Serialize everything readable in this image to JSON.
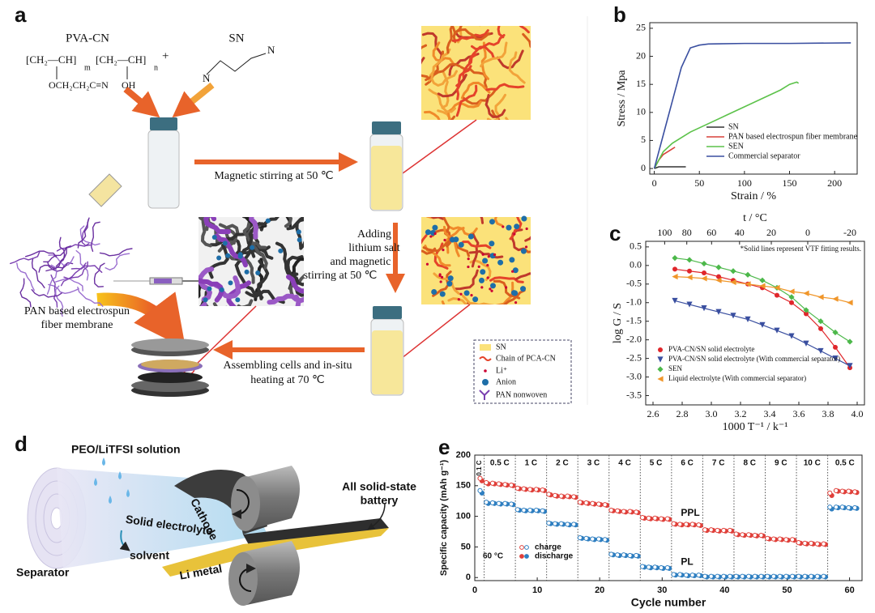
{
  "panels": {
    "a": {
      "label": "a",
      "pva_cn": "PVA-CN",
      "formula": [
        "[CH₂—CH]",
        "m",
        "[CH₂—CH]",
        "n",
        "+",
        "OCH₂CH₂C≡N",
        "OH"
      ],
      "sn": "SN",
      "sn_atoms": [
        "N",
        "N"
      ],
      "step1": "Magnetic stirring at 50 ℃",
      "step2": [
        "Adding",
        "lithium salt",
        "and magnetic",
        "stirring at 50 ℃"
      ],
      "membrane": [
        "PAN based electrospun",
        "fiber membrane"
      ],
      "step3": [
        "Assembling cells and in-situ",
        "heating at 70 ℃"
      ],
      "legend": [
        "SN",
        "Chain of PCA-CN",
        "Li⁺",
        "Anion",
        "PAN nonwoven"
      ]
    },
    "d": {
      "label": "d",
      "solution": "PEO/LiTFSI solution",
      "cathode": "Cathode",
      "electrolyte": "Solid electrolyte",
      "battery": [
        "All solid-state",
        "battery"
      ],
      "solvent": "solvent",
      "separator": "Separator",
      "li_metal": "Li metal"
    }
  },
  "chart_data": [
    {
      "type": "line",
      "label": "b",
      "xlabel": "Strain / %",
      "ylabel": "Stress / Mpa",
      "xlim": [
        -5,
        225
      ],
      "xticks": [
        0,
        50,
        100,
        150,
        200
      ],
      "ylim": [
        -1,
        26
      ],
      "yticks": [
        0,
        5,
        10,
        15,
        20,
        25
      ],
      "legend": "lower left",
      "series": [
        {
          "name": "SN",
          "color": "#333333",
          "x": [
            0,
            5,
            35
          ],
          "values": [
            0,
            0.3,
            0.3
          ]
        },
        {
          "name": "PAN based electrospun fiber membrane",
          "color": "#d9413a",
          "x": [
            0,
            5,
            10,
            15,
            20,
            23
          ],
          "values": [
            0,
            1.5,
            2.5,
            3,
            3.5,
            3.8
          ]
        },
        {
          "name": "SEN",
          "color": "#5cc24a",
          "x": [
            0,
            10,
            20,
            40,
            60,
            80,
            100,
            120,
            140,
            150,
            158,
            160
          ],
          "values": [
            0,
            3,
            4.5,
            6.5,
            8,
            9.5,
            11,
            12.5,
            14,
            15,
            15.4,
            15.2
          ]
        },
        {
          "name": "Commercial separator",
          "color": "#3a4fa0",
          "x": [
            0,
            10,
            20,
            30,
            40,
            50,
            60,
            100,
            150,
            218
          ],
          "values": [
            0,
            6,
            12,
            18,
            21.5,
            22,
            22.2,
            22.3,
            22.3,
            22.4
          ]
        }
      ]
    },
    {
      "type": "scatter",
      "label": "c",
      "xlabel": "1000 T⁻¹ / k⁻¹",
      "ylabel": "log G / S",
      "x2label": "t / °C",
      "note": "*Solid lines represent VTF fitting results.",
      "fit": true,
      "legend": "lower left",
      "xlim": [
        2.55,
        4.05
      ],
      "xticks": [
        2.6,
        2.8,
        {
          "value": 3,
          "label": "3.0"
        },
        3.2,
        3.4,
        3.6,
        3.8,
        {
          "value": 4,
          "label": "4.0"
        }
      ],
      "x2ticks": [
        100,
        80,
        60,
        40,
        20,
        0,
        -20
      ],
      "ylim": [
        -3.75,
        0.65
      ],
      "yticks": [
        0.5,
        {
          "value": 0,
          "label": "0.0"
        },
        -0.5,
        {
          "value": -1,
          "label": "-1.0"
        },
        -1.5,
        {
          "value": -2,
          "label": "-2.0"
        },
        -2.5,
        {
          "value": -3,
          "label": "-3.0"
        },
        -3.5
      ],
      "x": [
        2.75,
        2.85,
        2.95,
        3.05,
        3.15,
        3.25,
        3.35,
        3.45,
        3.55,
        3.65,
        3.75,
        3.85,
        3.95
      ],
      "series": [
        {
          "name": "PVA-CN/SN solid electrolyte",
          "color": "#e0262b",
          "marker": "circle",
          "values": [
            -0.1,
            -0.15,
            -0.2,
            -0.3,
            -0.4,
            -0.5,
            -0.6,
            -0.8,
            -1.0,
            -1.3,
            -1.7,
            -2.2,
            -2.75
          ]
        },
        {
          "name": "PVA-CN/SN solid electrolyte (With commercial separator)",
          "color": "#3a4fa0",
          "marker": "triangle-down",
          "values": [
            -0.95,
            -1.05,
            -1.15,
            -1.25,
            -1.35,
            -1.45,
            -1.6,
            -1.75,
            -1.9,
            -2.1,
            -2.3,
            -2.5,
            -2.7
          ]
        },
        {
          "name": "SEN",
          "color": "#4cb84a",
          "marker": "diamond",
          "values": [
            0.2,
            0.15,
            0.05,
            -0.05,
            -0.15,
            -0.25,
            -0.4,
            -0.6,
            -0.85,
            -1.2,
            -1.5,
            -1.8,
            -2.05
          ]
        },
        {
          "name": "Liquid electrolyte (With commercial separator)",
          "color": "#f0962a",
          "marker": "triangle-left",
          "values": [
            -0.3,
            -0.32,
            -0.35,
            -0.4,
            -0.45,
            -0.5,
            -0.55,
            -0.6,
            -0.7,
            -0.75,
            -0.85,
            -0.9,
            -1.0
          ]
        }
      ]
    },
    {
      "type": "scatter",
      "label": "e",
      "xlabel": "Cycle number",
      "ylabel": "Specific capacity (mAh g⁻¹)",
      "note": "60 °C",
      "xlim": [
        0,
        62
      ],
      "xticks": [
        0,
        10,
        20,
        30,
        40,
        50,
        60
      ],
      "ylim": [
        -5,
        200
      ],
      "yticks": [
        0,
        50,
        100,
        150,
        200
      ],
      "legend": [
        "charge",
        "discharge"
      ],
      "rates": [
        "0.1 C",
        "0.5 C",
        "1 C",
        "2 C",
        "3 C",
        "4 C",
        "5 C",
        "6 C",
        "7 C",
        "8 C",
        "9 C",
        "10 C",
        "0.5 C"
      ],
      "boundaries": [
        1.5,
        6.5,
        11.5,
        16.5,
        21.5,
        26.5,
        31.5,
        36.5,
        41.5,
        46.5,
        51.5,
        56.5
      ],
      "x": [
        1,
        2,
        3,
        4,
        5,
        6,
        7,
        8,
        9,
        10,
        11,
        12,
        13,
        14,
        15,
        16,
        17,
        18,
        19,
        20,
        21,
        22,
        23,
        24,
        25,
        26,
        27,
        28,
        29,
        30,
        31,
        32,
        33,
        34,
        35,
        36,
        37,
        38,
        39,
        40,
        41,
        42,
        43,
        44,
        45,
        46,
        47,
        48,
        49,
        50,
        51,
        52,
        53,
        54,
        55,
        56,
        57,
        58,
        59,
        60,
        61
      ],
      "series": [
        {
          "name": "PPL",
          "color": "#e0403a",
          "charge": [
            162,
            155,
            154,
            153,
            152,
            151,
            146,
            145,
            144,
            144,
            143,
            136,
            134,
            133,
            133,
            132,
            123,
            122,
            121,
            120,
            119,
            110,
            109,
            108,
            108,
            107,
            98,
            97,
            97,
            96,
            96,
            88,
            87,
            87,
            87,
            86,
            78,
            78,
            77,
            77,
            77,
            71,
            70,
            70,
            69,
            69,
            64,
            63,
            63,
            62,
            62,
            57,
            56,
            56,
            55,
            55,
            138,
            142,
            141,
            141,
            140
          ],
          "discharge": [
            158,
            153,
            153,
            152,
            151,
            150,
            145,
            144,
            143,
            143,
            142,
            135,
            133,
            132,
            132,
            131,
            122,
            121,
            120,
            119,
            118,
            109,
            108,
            107,
            107,
            106,
            97,
            96,
            96,
            95,
            95,
            87,
            86,
            86,
            86,
            85,
            77,
            77,
            76,
            76,
            76,
            70,
            69,
            69,
            68,
            68,
            63,
            62,
            62,
            61,
            61,
            56,
            55,
            55,
            54,
            54,
            134,
            141,
            140,
            140,
            139
          ]
        },
        {
          "name": "PL",
          "color": "#2f7fc1",
          "charge": [
            142,
            123,
            122,
            121,
            121,
            120,
            111,
            110,
            110,
            110,
            109,
            89,
            88,
            88,
            87,
            87,
            65,
            64,
            63,
            63,
            62,
            38,
            37,
            37,
            36,
            36,
            18,
            17,
            17,
            16,
            16,
            5,
            5,
            4,
            4,
            4,
            2,
            2,
            2,
            2,
            2,
            2,
            2,
            2,
            2,
            2,
            2,
            2,
            2,
            2,
            2,
            2,
            2,
            2,
            2,
            2,
            115,
            115,
            115,
            114,
            114
          ],
          "discharge": [
            138,
            121,
            121,
            120,
            120,
            119,
            110,
            109,
            109,
            109,
            108,
            88,
            87,
            87,
            86,
            86,
            64,
            63,
            62,
            62,
            61,
            37,
            36,
            36,
            35,
            35,
            17,
            16,
            16,
            15,
            15,
            4,
            4,
            3,
            3,
            3,
            1,
            1,
            1,
            1,
            1,
            1,
            1,
            1,
            1,
            1,
            1,
            1,
            1,
            1,
            1,
            1,
            1,
            1,
            1,
            1,
            112,
            114,
            114,
            113,
            113
          ]
        }
      ]
    }
  ]
}
